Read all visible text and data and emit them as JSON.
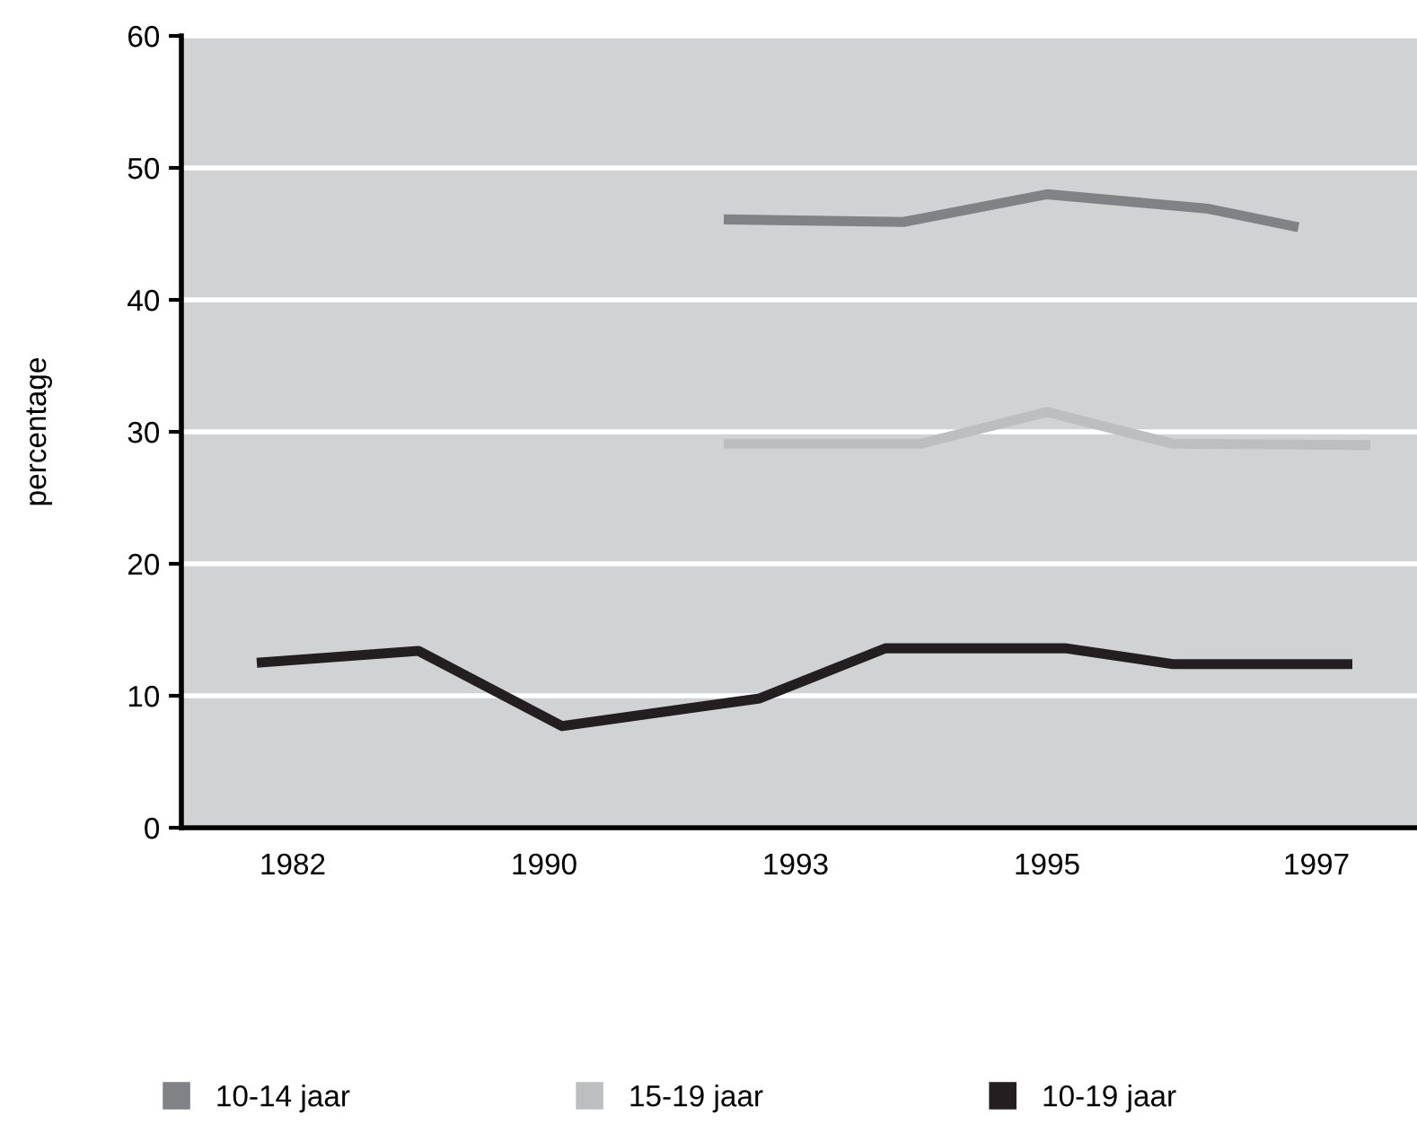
{
  "chart_data": {
    "type": "line",
    "ylabel": "percentage",
    "categories": [
      null,
      null,
      null,
      null,
      null,
      null,
      "1982",
      null,
      null,
      null,
      null,
      null,
      null,
      null,
      null,
      null,
      null,
      null,
      null,
      null,
      "1990",
      null,
      null,
      null,
      null,
      null,
      null,
      null,
      null,
      null,
      null,
      null,
      null,
      null,
      "1993",
      null,
      null,
      null,
      null,
      null,
      null,
      null,
      null,
      null,
      null,
      null,
      null,
      null,
      "1995",
      null,
      null,
      null,
      null,
      null,
      null,
      null,
      null,
      null,
      null,
      null,
      null,
      null,
      null,
      "1997",
      null,
      null,
      null,
      null,
      null
    ],
    "ylim": [
      0,
      60
    ],
    "yticks": [
      0,
      10,
      20,
      30,
      40,
      50,
      60
    ],
    "grid": "y",
    "legend": "bottom",
    "marker": "none",
    "line_style": "solid",
    "series": [
      {
        "name": "10-14 jaar",
        "color": "#808285",
        "values": [
          null,
          null,
          null,
          null,
          null,
          null,
          null,
          null,
          null,
          null,
          null,
          null,
          null,
          null,
          null,
          null,
          null,
          null,
          null,
          null,
          null,
          null,
          null,
          null,
          null,
          null,
          null,
          null,
          null,
          null,
          46.1,
          null,
          null,
          null,
          null,
          null,
          null,
          null,
          null,
          null,
          45.9,
          null,
          null,
          null,
          null,
          null,
          null,
          null,
          48.0,
          null,
          null,
          null,
          null,
          null,
          null,
          null,
          null,
          46.9,
          null,
          null,
          null,
          null,
          45.5,
          null,
          null,
          null,
          null,
          null,
          null
        ]
      },
      {
        "name": "15-19 jaar",
        "color": "#bcbec0",
        "values": [
          null,
          null,
          null,
          null,
          null,
          null,
          null,
          null,
          null,
          null,
          null,
          null,
          null,
          null,
          null,
          null,
          null,
          null,
          null,
          null,
          null,
          null,
          null,
          null,
          null,
          null,
          null,
          null,
          null,
          null,
          29.1,
          null,
          null,
          null,
          null,
          null,
          null,
          null,
          null,
          null,
          null,
          29.1,
          null,
          null,
          null,
          null,
          null,
          null,
          31.5,
          null,
          null,
          null,
          null,
          null,
          null,
          29.1,
          null,
          null,
          null,
          null,
          null,
          null,
          null,
          null,
          null,
          null,
          29.0,
          null,
          null
        ]
      },
      {
        "name": "10-19 jaar",
        "color": "#231f20",
        "values": [
          null,
          null,
          null,
          null,
          12.5,
          null,
          null,
          null,
          null,
          null,
          null,
          null,
          null,
          13.4,
          null,
          null,
          null,
          null,
          null,
          null,
          null,
          7.7,
          null,
          null,
          null,
          null,
          null,
          null,
          null,
          null,
          null,
          null,
          9.8,
          null,
          null,
          null,
          null,
          null,
          null,
          13.6,
          null,
          null,
          null,
          null,
          null,
          null,
          null,
          null,
          null,
          13.6,
          null,
          null,
          null,
          null,
          null,
          12.4,
          null,
          null,
          null,
          null,
          null,
          null,
          null,
          null,
          null,
          12.4,
          null,
          null,
          null
        ]
      }
    ]
  }
}
